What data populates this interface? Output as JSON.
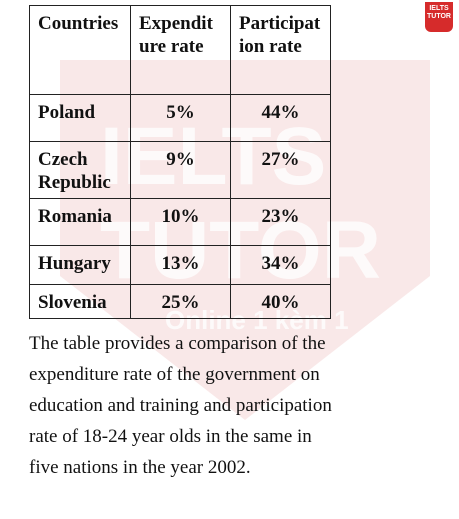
{
  "logo": "IELTS TUTOR",
  "watermark": {
    "brand": "IELTS TUTOR",
    "tagline": "Online 1 kèm 1"
  },
  "table": {
    "header": [
      "Countries",
      "Expenditure rate",
      "Participation rate"
    ],
    "rows": [
      [
        "Poland",
        "5%",
        "44%"
      ],
      [
        "Czech Republic",
        "9%",
        "27%"
      ],
      [
        "Romania",
        "10%",
        "23%"
      ],
      [
        "Hungary",
        "13%",
        "34%"
      ],
      [
        "Slovenia",
        "25%",
        "40%"
      ]
    ]
  },
  "description": "The table provides a comparison of the expenditure rate of the government on education and training and participation rate of 18-24  year olds in the same in five nations in the year 2002."
}
